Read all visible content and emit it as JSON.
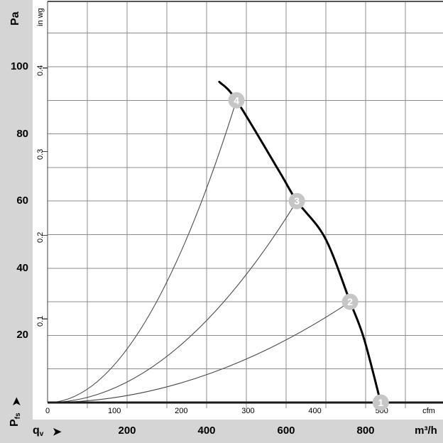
{
  "labels": {
    "pa_unit": "Pa",
    "inwg_unit": "in wg",
    "cfm_unit": "cfm",
    "m3h_unit": "m³/h",
    "flow_symbol": {
      "base": "q",
      "sub": "v"
    },
    "pressure_symbol": {
      "base": "P",
      "sub": "fs"
    },
    "arrow_glyph": "➤"
  },
  "colors": {
    "margin_gray": "#d5d5d5",
    "marker_gray": "#c6c6c6",
    "grid_gray": "#8c8c8c",
    "axis_dark": "#1a1a1a",
    "frame_gray": "#555555",
    "thin_curve": "#4a4a4a",
    "main_curve": "#000000",
    "marker_text": "#ffffff"
  },
  "chart_data": {
    "type": "line",
    "description": "Fan static pressure vs. volume flow characteristic with four operating points",
    "x_axis": {
      "primary": {
        "unit": "m³/h",
        "ticks": [
          200,
          400,
          600,
          800
        ],
        "range": [
          0,
          1000
        ],
        "gridlines_every": 100
      },
      "secondary": {
        "unit": "cfm",
        "ticks": [
          0,
          100,
          200,
          300,
          400,
          500
        ]
      }
    },
    "y_axis": {
      "primary": {
        "unit": "Pa",
        "ticks": [
          20,
          40,
          60,
          80,
          100
        ],
        "range": [
          0,
          119
        ],
        "gridlines_every": 10
      },
      "secondary": {
        "unit": "in wg",
        "ticks": [
          0.1,
          0.2,
          0.3,
          0.4
        ]
      }
    },
    "fan_curve": {
      "name": "fan-pressure-curve",
      "points_m3h_pa": [
        [
          432,
          95.5
        ],
        [
          475,
          90
        ],
        [
          582,
          69
        ],
        [
          627,
          60
        ],
        [
          698,
          49
        ],
        [
          761,
          30
        ],
        [
          796,
          19
        ],
        [
          838,
          0
        ]
      ]
    },
    "system_curves": [
      {
        "name": "system-curve-to-4",
        "end_m3h_pa": [
          475,
          90
        ]
      },
      {
        "name": "system-curve-to-3",
        "end_m3h_pa": [
          627,
          60
        ]
      },
      {
        "name": "system-curve-to-2",
        "end_m3h_pa": [
          761,
          30
        ]
      }
    ],
    "markers": [
      {
        "label": "1",
        "m3h": 838,
        "pa": 0
      },
      {
        "label": "2",
        "m3h": 761,
        "pa": 30
      },
      {
        "label": "3",
        "m3h": 627,
        "pa": 60
      },
      {
        "label": "4",
        "m3h": 475,
        "pa": 90
      }
    ],
    "legend": "off",
    "grid": "on"
  }
}
